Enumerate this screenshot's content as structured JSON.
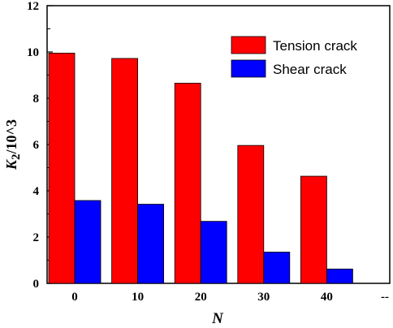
{
  "chart_data": {
    "type": "bar",
    "categories": [
      "0",
      "10",
      "20",
      "30",
      "40"
    ],
    "series": [
      {
        "name": "Tension crack",
        "values": [
          9.95,
          9.72,
          8.65,
          5.96,
          4.63
        ],
        "color": "#ff0000"
      },
      {
        "name": "Shear crack",
        "values": [
          3.58,
          3.42,
          2.68,
          1.35,
          0.62
        ],
        "color": "#0000ff"
      }
    ],
    "xlabel": "N",
    "ylabel_main": "K",
    "ylabel_sub": "2",
    "ylabel_suffix": "/10^3",
    "extra_x_tick": "--",
    "ylim": [
      0,
      12
    ],
    "yticks": [
      "0",
      "2",
      "4",
      "6",
      "8",
      "10",
      "12"
    ],
    "legend_position": "top-right",
    "grid": false
  }
}
